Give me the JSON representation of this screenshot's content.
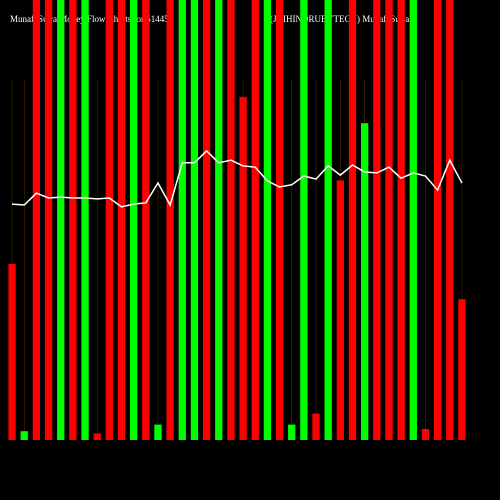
{
  "chart_data": {
    "type": "bar",
    "title": "MunafaSutra Money Flow Charts for 514459",
    "subtitle": "(JAIHINDRUBYTECH) MunafaSutra",
    "ylim": [
      0,
      100
    ],
    "grid": true,
    "categories": [
      null,
      null,
      null,
      null,
      null,
      null,
      null,
      null,
      null,
      null,
      null,
      null,
      null,
      null,
      null,
      null,
      null,
      null,
      null,
      null,
      null,
      null,
      null,
      null,
      null,
      null,
      null,
      null,
      null,
      null,
      null,
      null,
      null,
      null,
      null,
      null,
      null,
      null
    ],
    "values": [
      40,
      2,
      100,
      100,
      100,
      100,
      100,
      1.5,
      100,
      100,
      100,
      100,
      3.5,
      100,
      100,
      100,
      100,
      100,
      100,
      78,
      100,
      100,
      100,
      3.5,
      100,
      6,
      100,
      59,
      100,
      72,
      100,
      100,
      100,
      100,
      2.5,
      100,
      100,
      32
    ],
    "colors": [
      "#ff0000",
      "#00ff00",
      "#ff0000",
      "#ff0000",
      "#00ff00",
      "#ff0000",
      "#00ff00",
      "#ff0000",
      "#ff0000",
      "#ff0000",
      "#00ff00",
      "#ff0000",
      "#00ff00",
      "#ff0000",
      "#00ff00",
      "#00ff00",
      "#ff0000",
      "#00ff00",
      "#ff0000",
      "#ff0000",
      "#ff0000",
      "#00ff00",
      "#ff0000",
      "#00ff00",
      "#00ff00",
      "#ff0000",
      "#00ff00",
      "#ff0000",
      "#ff0000",
      "#00ff00",
      "#ff0000",
      "#ff0000",
      "#ff0000",
      "#00ff00",
      "#ff0000",
      "#ff0000",
      "#ff0000",
      "#ff0000"
    ],
    "line": {
      "color": "#ffffff",
      "values": [
        53.6,
        53.4,
        56.1,
        55,
        55.2,
        55,
        55,
        54.8,
        55,
        53,
        53.6,
        53.9,
        58.4,
        53.4,
        63,
        63,
        65.7,
        63,
        63.6,
        62.3,
        62,
        58.9,
        57.5,
        58,
        60,
        59.3,
        62.3,
        60.2,
        62.5,
        60.9,
        60.7,
        62,
        59.5,
        60.7,
        60,
        56.8,
        63.6,
        58.4
      ]
    }
  }
}
